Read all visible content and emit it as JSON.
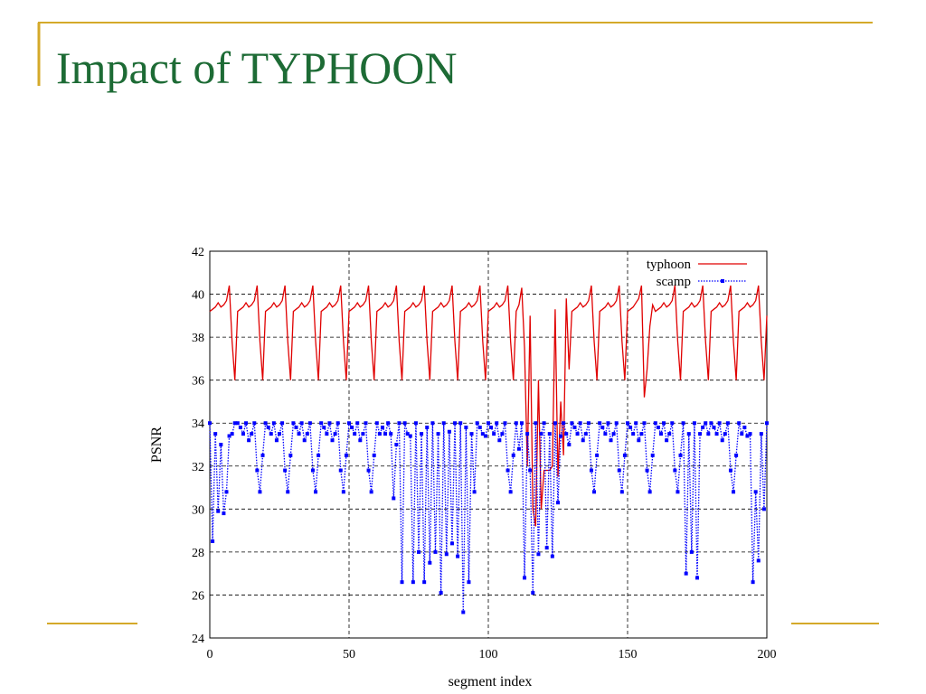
{
  "slide": {
    "title": "Impact of TYPHOON"
  },
  "chart_data": {
    "type": "line",
    "xlabel": "segment index",
    "ylabel": "PSNR",
    "xlim": [
      0,
      200
    ],
    "xticks": [
      0,
      50,
      100,
      150,
      200
    ],
    "ylim": [
      24,
      42
    ],
    "yticks": [
      24,
      26,
      28,
      30,
      32,
      34,
      36,
      38,
      40,
      42
    ],
    "grid": true,
    "legend": "upper right",
    "x": [
      0,
      1,
      2,
      3,
      4,
      5,
      6,
      7,
      8,
      9,
      10,
      11,
      12,
      13,
      14,
      15,
      16,
      17,
      18,
      19,
      20,
      21,
      22,
      23,
      24,
      25,
      26,
      27,
      28,
      29,
      30,
      31,
      32,
      33,
      34,
      35,
      36,
      37,
      38,
      39,
      40,
      41,
      42,
      43,
      44,
      45,
      46,
      47,
      48,
      49,
      50,
      51,
      52,
      53,
      54,
      55,
      56,
      57,
      58,
      59,
      60,
      61,
      62,
      63,
      64,
      65,
      66,
      67,
      68,
      69,
      70,
      71,
      72,
      73,
      74,
      75,
      76,
      77,
      78,
      79,
      80,
      81,
      82,
      83,
      84,
      85,
      86,
      87,
      88,
      89,
      90,
      91,
      92,
      93,
      94,
      95,
      96,
      97,
      98,
      99,
      100,
      101,
      102,
      103,
      104,
      105,
      106,
      107,
      108,
      109,
      110,
      111,
      112,
      113,
      114,
      115,
      116,
      117,
      118,
      119,
      120,
      121,
      122,
      123,
      124,
      125,
      126,
      127,
      128,
      129,
      130,
      131,
      132,
      133,
      134,
      135,
      136,
      137,
      138,
      139,
      140,
      141,
      142,
      143,
      144,
      145,
      146,
      147,
      148,
      149,
      150,
      151,
      152,
      153,
      154,
      155,
      156,
      157,
      158,
      159,
      160,
      161,
      162,
      163,
      164,
      165,
      166,
      167,
      168,
      169,
      170,
      171,
      172,
      173,
      174,
      175,
      176,
      177,
      178,
      179,
      180,
      181,
      182,
      183,
      184,
      185,
      186,
      187,
      188,
      189,
      190,
      191,
      192,
      193,
      194,
      195,
      196,
      197,
      198,
      199,
      200
    ],
    "series": [
      {
        "name": "typhoon",
        "color": "#e00000",
        "style": "solid",
        "values": [
          39.2,
          39.3,
          39.4,
          39.6,
          39.4,
          39.5,
          39.7,
          40.4,
          37.8,
          36.0,
          39.2,
          39.3,
          39.4,
          39.6,
          39.4,
          39.5,
          39.7,
          40.4,
          37.8,
          36.0,
          39.2,
          39.3,
          39.4,
          39.6,
          39.4,
          39.5,
          39.7,
          40.4,
          37.8,
          36.0,
          39.2,
          39.3,
          39.4,
          39.6,
          39.4,
          39.5,
          39.7,
          40.4,
          37.8,
          36.0,
          39.2,
          39.3,
          39.4,
          39.6,
          39.4,
          39.5,
          39.7,
          40.4,
          37.8,
          36.0,
          39.2,
          39.3,
          39.4,
          39.6,
          39.4,
          39.5,
          39.7,
          40.4,
          37.8,
          36.0,
          39.2,
          39.3,
          39.4,
          39.6,
          39.4,
          39.5,
          39.7,
          40.4,
          37.8,
          36.0,
          39.2,
          39.3,
          39.4,
          39.6,
          39.4,
          39.5,
          39.7,
          40.4,
          37.8,
          36.0,
          39.2,
          39.3,
          39.4,
          39.6,
          39.4,
          39.5,
          39.7,
          40.4,
          37.8,
          36.0,
          39.2,
          39.3,
          39.4,
          39.6,
          39.4,
          39.5,
          39.7,
          40.4,
          37.8,
          36.0,
          39.2,
          39.3,
          39.4,
          39.6,
          39.4,
          39.5,
          39.7,
          40.4,
          37.8,
          36.0,
          39.2,
          39.5,
          40.3,
          37.5,
          32.0,
          39.0,
          30.0,
          29.2,
          36.0,
          30.0,
          31.8,
          31.8,
          31.8,
          32.0,
          39.3,
          31.5,
          35.0,
          32.5,
          39.8,
          36.5,
          39.2,
          39.3,
          39.4,
          39.6,
          39.4,
          39.5,
          39.7,
          40.4,
          37.8,
          36.0,
          39.2,
          39.3,
          39.4,
          39.6,
          39.4,
          39.5,
          39.7,
          40.4,
          37.8,
          36.0,
          39.2,
          39.3,
          39.4,
          39.6,
          39.8,
          40.4,
          35.2,
          36.5,
          38.5,
          39.5,
          39.2,
          39.3,
          39.4,
          39.6,
          39.4,
          39.5,
          39.7,
          40.4,
          37.8,
          36.0,
          39.2,
          39.3,
          39.4,
          39.6,
          39.4,
          39.5,
          39.7,
          40.4,
          37.8,
          36.0,
          39.2,
          39.3,
          39.4,
          39.6,
          39.4,
          39.5,
          39.7,
          40.4,
          37.8,
          36.0,
          39.2,
          39.3,
          39.4,
          39.6,
          39.4,
          39.5,
          39.7,
          40.4,
          37.8,
          36.0,
          39.0
        ]
      },
      {
        "name": "scamp",
        "color": "#0000ff",
        "style": "dotted",
        "values": [
          34.0,
          28.5,
          33.5,
          29.9,
          33.0,
          29.8,
          30.8,
          33.4,
          33.5,
          34.0,
          34.0,
          33.8,
          33.5,
          34.0,
          33.2,
          33.5,
          34.0,
          31.8,
          30.8,
          32.5,
          34.0,
          33.8,
          33.5,
          34.0,
          33.2,
          33.5,
          34.0,
          31.8,
          30.8,
          32.5,
          34.0,
          33.8,
          33.5,
          34.0,
          33.2,
          33.5,
          34.0,
          31.8,
          30.8,
          32.5,
          34.0,
          33.8,
          33.5,
          34.0,
          33.2,
          33.5,
          34.0,
          31.8,
          30.8,
          32.5,
          34.0,
          33.8,
          33.5,
          34.0,
          33.2,
          33.5,
          34.0,
          31.8,
          30.8,
          32.5,
          34.0,
          33.5,
          33.8,
          33.5,
          34.0,
          33.5,
          30.5,
          33.0,
          34.0,
          26.6,
          34.0,
          33.5,
          33.4,
          26.6,
          34.0,
          28.0,
          33.5,
          26.6,
          33.8,
          27.5,
          34.0,
          28.0,
          33.5,
          26.1,
          34.0,
          27.9,
          33.6,
          28.4,
          34.0,
          27.8,
          34.0,
          25.2,
          33.8,
          26.6,
          33.5,
          30.8,
          34.0,
          33.8,
          33.5,
          33.4,
          34.0,
          33.8,
          33.5,
          34.0,
          33.2,
          33.5,
          34.0,
          31.8,
          30.8,
          32.5,
          34.0,
          32.8,
          34.0,
          26.8,
          33.5,
          31.8,
          26.1,
          34.0,
          27.9,
          33.5,
          34.0,
          28.2,
          33.5,
          27.8,
          34.0,
          30.3,
          33.4,
          34.0,
          33.5,
          33.0,
          34.0,
          33.8,
          33.5,
          34.0,
          33.2,
          33.5,
          34.0,
          31.8,
          30.8,
          32.5,
          34.0,
          33.8,
          33.5,
          34.0,
          33.2,
          33.5,
          34.0,
          31.8,
          30.8,
          32.5,
          34.0,
          33.8,
          33.5,
          34.0,
          33.2,
          33.5,
          34.0,
          31.8,
          30.8,
          32.5,
          34.0,
          33.8,
          33.5,
          34.0,
          33.2,
          33.5,
          34.0,
          31.8,
          30.8,
          32.5,
          34.0,
          27.0,
          33.5,
          28.0,
          34.0,
          26.8,
          33.5,
          33.8,
          34.0,
          33.5,
          34.0,
          33.8,
          33.5,
          34.0,
          33.2,
          33.5,
          34.0,
          31.8,
          30.8,
          32.5,
          34.0,
          33.5,
          33.8,
          33.4,
          33.5,
          26.6,
          30.8,
          27.6,
          33.5,
          30.0,
          34.0
        ]
      }
    ]
  }
}
